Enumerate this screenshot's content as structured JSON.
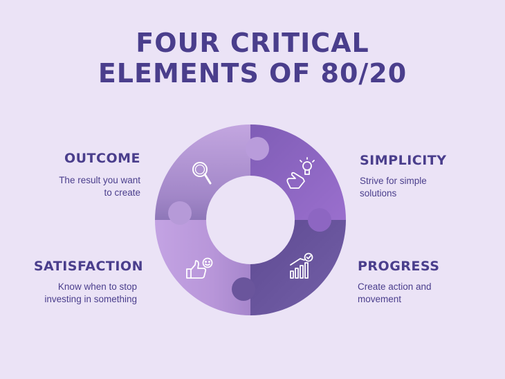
{
  "title": {
    "line1": "FOUR CRITICAL",
    "line2": "ELEMENTS OF 80/20"
  },
  "elements": {
    "outcome": {
      "heading": "OUTCOME",
      "desc_line1": "The result you want",
      "desc_line2": "to create",
      "icon": "magnifier-icon",
      "color": "#b89ad8"
    },
    "simplicity": {
      "heading": "SIMPLICITY",
      "desc_line1": "Strive for simple",
      "desc_line2": "solutions",
      "icon": "lightbulb-hand-icon",
      "color": "#8a63bf"
    },
    "progress": {
      "heading": "PROGRESS",
      "desc_line1": "Create action and",
      "desc_line2": "movement",
      "icon": "bar-chart-check-icon",
      "color": "#6c579c"
    },
    "satisfaction": {
      "heading": "SATISFACTION",
      "desc_line1": "Know when to stop",
      "desc_line2": "investing in something",
      "icon": "thumbs-up-smile-icon",
      "color": "#b796d9"
    }
  },
  "colors": {
    "background": "#ebe3f6",
    "text": "#4a3e8c"
  }
}
